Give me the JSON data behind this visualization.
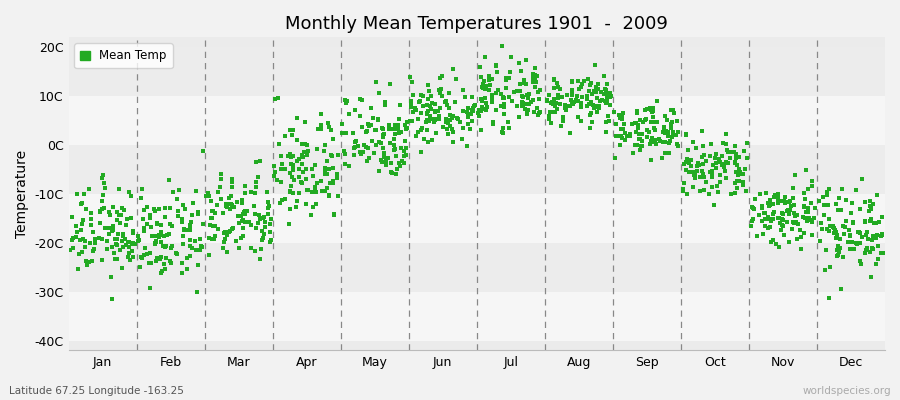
{
  "title": "Monthly Mean Temperatures 1901  -  2009",
  "ylabel": "Temperature",
  "xlabel_labels": [
    "Jan",
    "Feb",
    "Mar",
    "Apr",
    "May",
    "Jun",
    "Jul",
    "Aug",
    "Sep",
    "Oct",
    "Nov",
    "Dec"
  ],
  "ytick_labels": [
    "20C",
    "10C",
    "0C",
    "-10C",
    "-20C",
    "-30C",
    "-40C"
  ],
  "ytick_values": [
    20,
    10,
    0,
    -10,
    -20,
    -30,
    -40
  ],
  "ylim": [
    -42,
    22
  ],
  "dot_color": "#22aa22",
  "dot_size": 5,
  "background_color": "#f2f2f2",
  "plot_bg_color": "#ebebeb",
  "subtitle": "Latitude 67.25 Longitude -163.25",
  "watermark": "worldspecies.org",
  "legend_label": "Mean Temp",
  "monthly_means": [
    -18,
    -19,
    -15,
    -5,
    2,
    7,
    10,
    9,
    3,
    -5,
    -14,
    -17
  ],
  "monthly_stds": [
    4.5,
    4.5,
    4.5,
    5.5,
    4.5,
    3.5,
    3.0,
    2.5,
    2.5,
    3.5,
    3.5,
    4.5
  ],
  "n_points": 109,
  "band_colors": [
    "#ececec",
    "#f6f6f6"
  ],
  "band_edges": [
    20,
    10,
    0,
    -10,
    -20,
    -30,
    -40
  ]
}
